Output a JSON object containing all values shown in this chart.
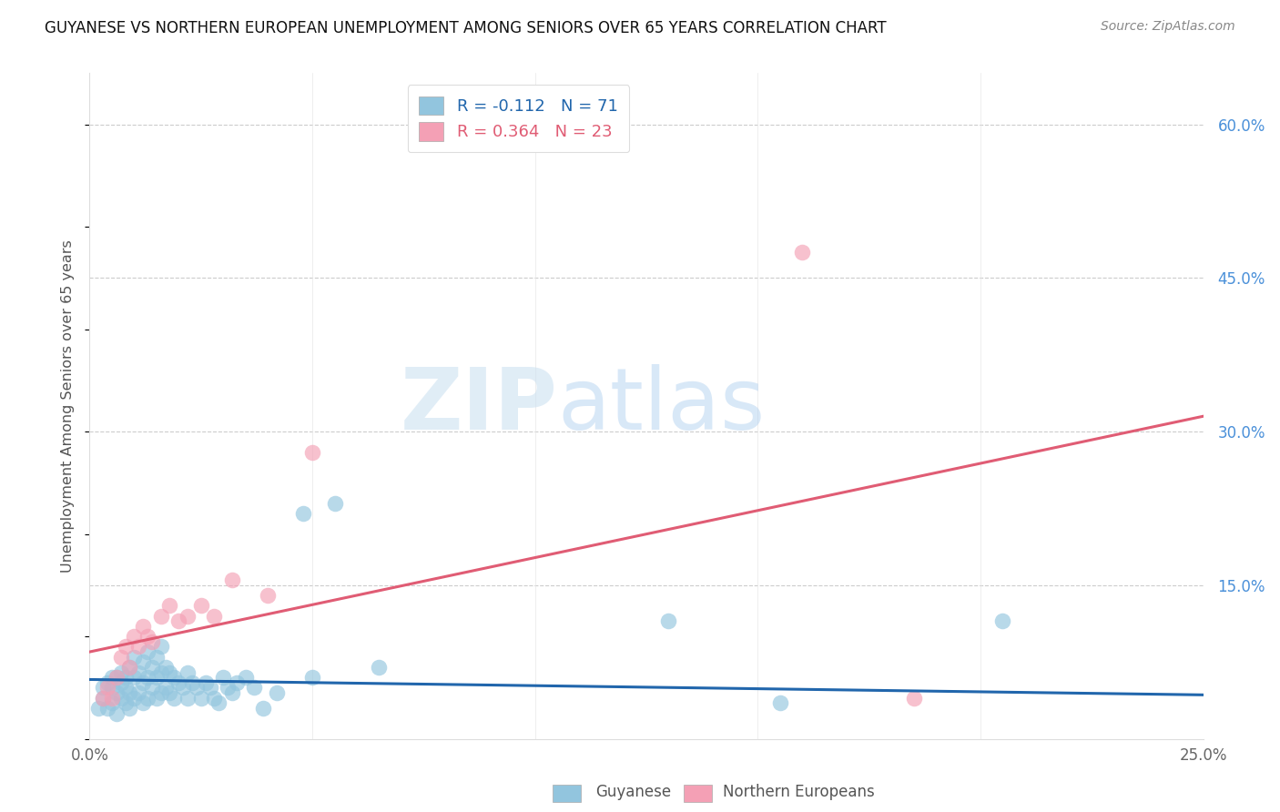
{
  "title": "GUYANESE VS NORTHERN EUROPEAN UNEMPLOYMENT AMONG SENIORS OVER 65 YEARS CORRELATION CHART",
  "source": "Source: ZipAtlas.com",
  "ylabel": "Unemployment Among Seniors over 65 years",
  "legend_label_1": "Guyanese",
  "legend_label_2": "Northern Europeans",
  "r1": -0.112,
  "n1": 71,
  "r2": 0.364,
  "n2": 23,
  "xlim": [
    0.0,
    0.25
  ],
  "ylim": [
    0.0,
    0.65
  ],
  "color_blue": "#92c5de",
  "color_pink": "#f4a0b5",
  "line_color_blue": "#2166ac",
  "line_color_pink": "#e05c74",
  "background_color": "#ffffff",
  "watermark_zip": "ZIP",
  "watermark_atlas": "atlas",
  "guyanese_x": [
    0.002,
    0.003,
    0.003,
    0.004,
    0.004,
    0.005,
    0.005,
    0.005,
    0.006,
    0.006,
    0.006,
    0.007,
    0.007,
    0.007,
    0.008,
    0.008,
    0.008,
    0.009,
    0.009,
    0.009,
    0.01,
    0.01,
    0.01,
    0.011,
    0.011,
    0.012,
    0.012,
    0.012,
    0.013,
    0.013,
    0.013,
    0.014,
    0.014,
    0.015,
    0.015,
    0.015,
    0.016,
    0.016,
    0.016,
    0.017,
    0.017,
    0.018,
    0.018,
    0.019,
    0.019,
    0.02,
    0.021,
    0.022,
    0.022,
    0.023,
    0.024,
    0.025,
    0.026,
    0.027,
    0.028,
    0.029,
    0.03,
    0.031,
    0.032,
    0.033,
    0.035,
    0.037,
    0.039,
    0.042,
    0.048,
    0.05,
    0.055,
    0.065,
    0.13,
    0.155,
    0.205
  ],
  "guyanese_y": [
    0.03,
    0.04,
    0.05,
    0.03,
    0.055,
    0.035,
    0.05,
    0.06,
    0.025,
    0.045,
    0.06,
    0.04,
    0.055,
    0.065,
    0.035,
    0.05,
    0.06,
    0.03,
    0.045,
    0.07,
    0.04,
    0.06,
    0.08,
    0.045,
    0.065,
    0.035,
    0.055,
    0.075,
    0.04,
    0.06,
    0.085,
    0.05,
    0.07,
    0.04,
    0.06,
    0.08,
    0.045,
    0.065,
    0.09,
    0.05,
    0.07,
    0.045,
    0.065,
    0.04,
    0.06,
    0.055,
    0.05,
    0.04,
    0.065,
    0.055,
    0.05,
    0.04,
    0.055,
    0.05,
    0.04,
    0.035,
    0.06,
    0.05,
    0.045,
    0.055,
    0.06,
    0.05,
    0.03,
    0.045,
    0.22,
    0.06,
    0.23,
    0.07,
    0.115,
    0.035,
    0.115
  ],
  "northern_x": [
    0.003,
    0.004,
    0.005,
    0.006,
    0.007,
    0.008,
    0.009,
    0.01,
    0.011,
    0.012,
    0.013,
    0.014,
    0.016,
    0.018,
    0.02,
    0.022,
    0.025,
    0.028,
    0.032,
    0.04,
    0.05,
    0.16,
    0.185
  ],
  "northern_y": [
    0.04,
    0.05,
    0.04,
    0.06,
    0.08,
    0.09,
    0.07,
    0.1,
    0.09,
    0.11,
    0.1,
    0.095,
    0.12,
    0.13,
    0.115,
    0.12,
    0.13,
    0.12,
    0.155,
    0.14,
    0.28,
    0.475,
    0.04
  ],
  "pink_line_x0": 0.0,
  "pink_line_y0": 0.085,
  "pink_line_x1": 0.25,
  "pink_line_y1": 0.315,
  "blue_line_x0": 0.0,
  "blue_line_y0": 0.058,
  "blue_line_x1": 0.25,
  "blue_line_y1": 0.043
}
